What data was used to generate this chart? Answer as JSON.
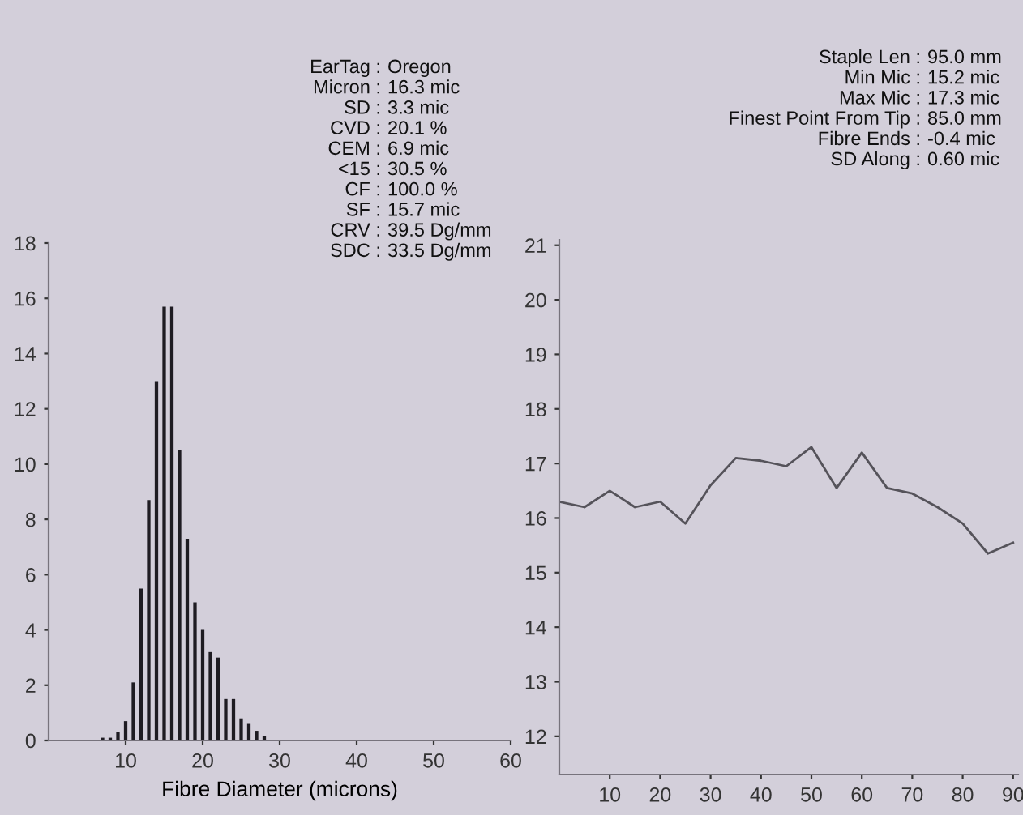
{
  "chart_data": [
    {
      "type": "histogram",
      "xlabel": "Fibre Diameter (microns)",
      "bins": [
        6.5,
        7.5,
        8.5,
        9.5,
        10.5,
        11.5,
        12.5,
        13.5,
        14.5,
        15.5,
        16.5,
        17.5,
        18.5,
        19.5,
        20.5,
        21.5,
        22.5,
        23.5,
        24.5,
        25.5,
        26.5,
        27.5,
        28.5
      ],
      "values": [
        0.1,
        0.1,
        0.3,
        0.7,
        2.1,
        5.5,
        8.7,
        13,
        15.7,
        15.7,
        10.5,
        7.3,
        5,
        4,
        3.2,
        3,
        1.5,
        1.5,
        0.8,
        0.6,
        0.35,
        0.15
      ],
      "color": "#1e1c22",
      "xlim": [
        0,
        60
      ],
      "xticks": [
        10,
        20,
        30,
        40,
        50,
        60
      ],
      "ylim": [
        0,
        18
      ],
      "yticks": [
        0,
        2,
        4,
        6,
        8,
        10,
        12,
        14,
        16,
        18
      ],
      "grid": false,
      "legend": false,
      "annotations": [
        "EarTag : Oregon",
        "Micron : 16.3 mic",
        "SD : 3.3 mic",
        "CVD : 20.1 %",
        "CEM : 6.9 mic",
        "<15 : 30.5 %",
        "CF : 100.0 %",
        "SF : 15.7 mic",
        "CRV : 39.5 Dg/mm",
        "SDC : 33.5 Dg/mm"
      ]
    },
    {
      "type": "line",
      "x": [
        0,
        5,
        10,
        15,
        20,
        25,
        30,
        35,
        40,
        45,
        50,
        55,
        60,
        65,
        70,
        75,
        80,
        85,
        90
      ],
      "series": [
        {
          "color": "#55535a",
          "values": [
            16.3,
            16.2,
            16.5,
            16.2,
            16.3,
            15.9,
            16.6,
            17.1,
            17.05,
            16.95,
            17.3,
            16.55,
            17.2,
            16.55,
            16.45,
            16.2,
            15.9,
            15.35,
            15.55
          ]
        }
      ],
      "xlim": [
        0,
        91
      ],
      "xticks": [
        10,
        20,
        30,
        40,
        50,
        60,
        70,
        80,
        90
      ],
      "ylim": [
        11.3,
        21.1
      ],
      "yticks": [
        12,
        13,
        14,
        15,
        16,
        17,
        18,
        19,
        20,
        21
      ],
      "grid": false,
      "legend": false,
      "marker": "none",
      "line_style": "solid",
      "annotations": [
        "Staple Len : 95.0 mm",
        "Min Mic : 15.2 mic",
        "Max Mic : 17.3 mic",
        "Finest Point From Tip : 85.0 mm",
        "Fibre Ends : -0.4 mic",
        "SD Along : 0.60 mic"
      ]
    }
  ]
}
